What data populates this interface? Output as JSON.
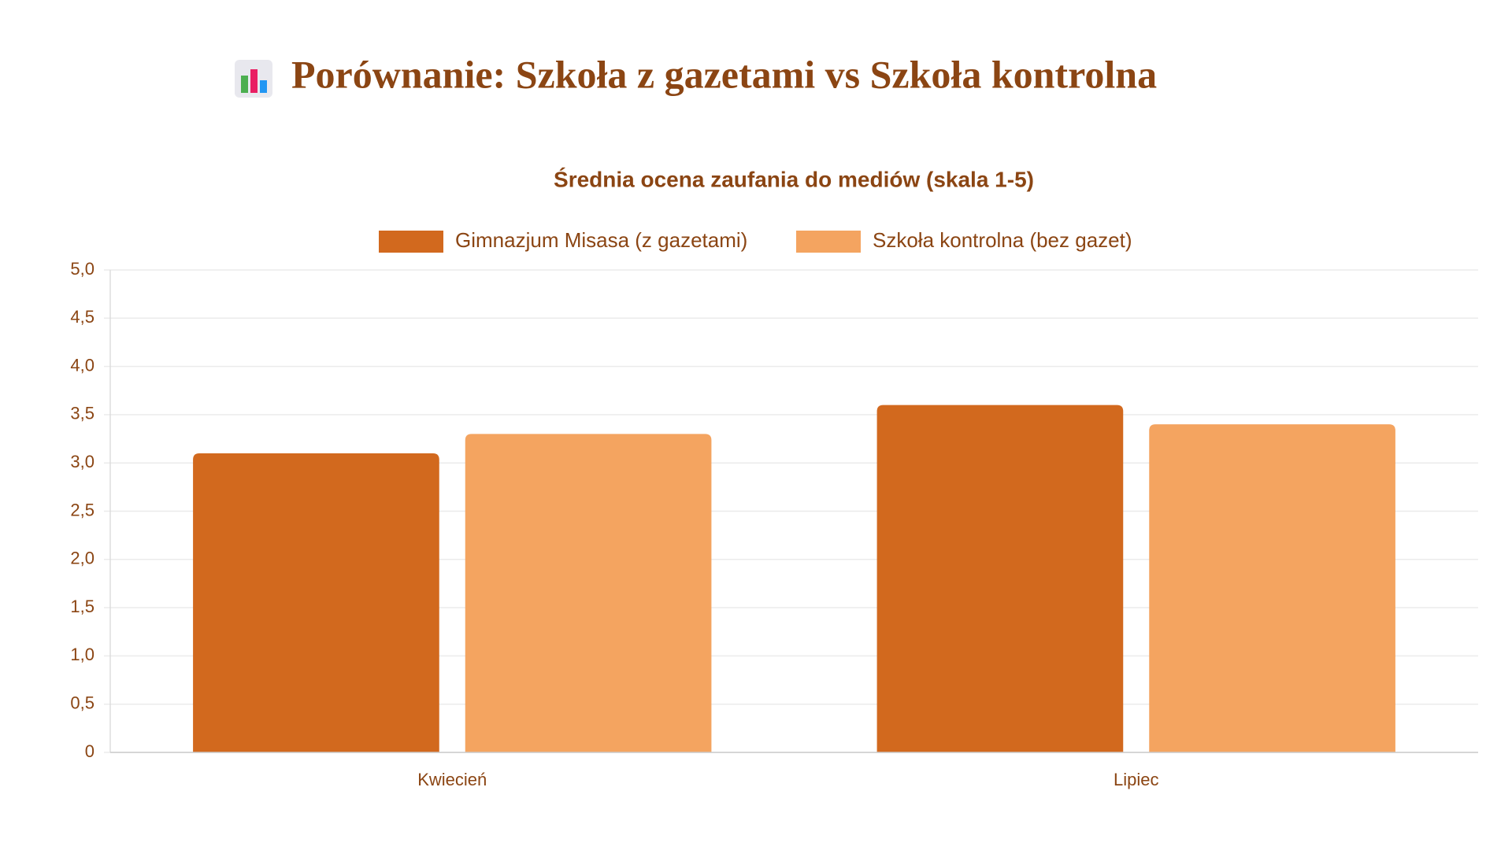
{
  "chart_data": {
    "type": "bar",
    "title": "Porównanie: Szkoła z gazetami vs Szkoła kontrolna",
    "subtitle": "Średnia ocena zaufania do mediów (skala 1-5)",
    "categories": [
      "Kwiecień",
      "Lipiec"
    ],
    "series": [
      {
        "name": "Gimnazjum Misasa (z gazetami)",
        "color": "#D2691E",
        "values": [
          3.1,
          3.6
        ]
      },
      {
        "name": "Szkoła kontrolna (bez gazet)",
        "color": "#F4A460",
        "values": [
          3.3,
          3.4
        ]
      }
    ],
    "ylim": [
      0,
      5
    ],
    "yticks": [
      0,
      {
        "value": 0.5,
        "label": "0,5"
      },
      {
        "value": 1,
        "label": "1,0"
      },
      {
        "value": 1.5,
        "label": "1,5"
      },
      {
        "value": 2,
        "label": "2,0"
      },
      {
        "value": 2.5,
        "label": "2,5"
      },
      {
        "value": 3,
        "label": "3,0"
      },
      {
        "value": 3.5,
        "label": "3,5"
      },
      {
        "value": 4,
        "label": "4,0"
      },
      {
        "value": 4.5,
        "label": "4,5"
      },
      {
        "value": 5,
        "label": "5,0"
      }
    ],
    "grid": true,
    "legend": "top"
  }
}
